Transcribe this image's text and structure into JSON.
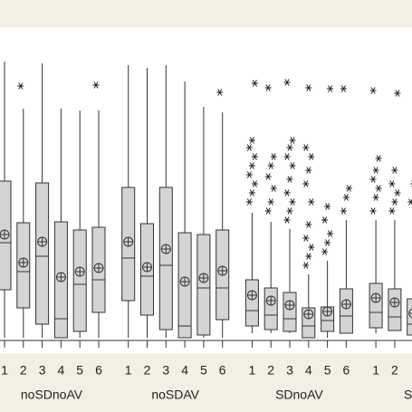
{
  "chart_data": {
    "type": "boxplot",
    "ylim": [
      0,
      343
    ],
    "box_color": "#d4d4d4",
    "line_color": "#333333",
    "groups": [
      {
        "name": "noSDnoAV",
        "categories": [
          "1",
          "2",
          "3",
          "4",
          "5",
          "6"
        ],
        "boxes": [
          {
            "whislo": 0,
            "q1": 53,
            "med": 105,
            "mean": 114,
            "q3": 173,
            "whishi": 305,
            "fliers": []
          },
          {
            "whislo": 0,
            "q1": 33,
            "med": 73,
            "mean": 83,
            "q3": 127,
            "whishi": 253,
            "fliers": [
              278
            ]
          },
          {
            "whislo": 0,
            "q1": 15,
            "med": 90,
            "mean": 106,
            "q3": 171,
            "whishi": 303,
            "fliers": []
          },
          {
            "whislo": 0,
            "q1": 0,
            "med": 21,
            "mean": 67,
            "q3": 128,
            "whishi": 253,
            "fliers": []
          },
          {
            "whislo": 0,
            "q1": 7,
            "med": 59,
            "mean": 73,
            "q3": 119,
            "whishi": 251,
            "fliers": []
          },
          {
            "whislo": 0,
            "q1": 28,
            "med": 64,
            "mean": 77,
            "q3": 122,
            "whishi": 251,
            "fliers": [
              279
            ]
          }
        ]
      },
      {
        "name": "noSDAV",
        "categories": [
          "1",
          "2",
          "3",
          "4",
          "5",
          "6"
        ],
        "boxes": [
          {
            "whislo": 0,
            "q1": 41,
            "med": 88,
            "mean": 106,
            "q3": 166,
            "whishi": 301,
            "fliers": []
          },
          {
            "whislo": 0,
            "q1": 25,
            "med": 68,
            "mean": 78,
            "q3": 126,
            "whishi": 298,
            "fliers": []
          },
          {
            "whislo": 0,
            "q1": 9,
            "med": 80,
            "mean": 98,
            "q3": 166,
            "whishi": 301,
            "fliers": []
          },
          {
            "whislo": 0,
            "q1": 0,
            "med": 13,
            "mean": 62,
            "q3": 116,
            "whishi": 283,
            "fliers": []
          },
          {
            "whislo": 0,
            "q1": 3,
            "med": 55,
            "mean": 66,
            "q3": 114,
            "whishi": 255,
            "fliers": []
          },
          {
            "whislo": 0,
            "q1": 20,
            "med": 55,
            "mean": 74,
            "q3": 119,
            "whishi": 249,
            "fliers": [
              271
            ]
          }
        ]
      },
      {
        "name": "SDnoAV",
        "categories": [
          "1",
          "2",
          "3",
          "4",
          "5",
          "6"
        ],
        "boxes": [
          {
            "whislo": 5,
            "q1": 13,
            "med": 30,
            "mean": 47,
            "q3": 64,
            "whishi": 138,
            "fliers": [
              150,
              160,
              170,
              180,
              190,
              200,
              210,
              218,
              281
            ]
          },
          {
            "whislo": 5,
            "q1": 9,
            "med": 25,
            "mean": 41,
            "q3": 55,
            "whishi": 128,
            "fliers": [
              140,
              150,
              165,
              178,
              190,
              200,
              276
            ]
          },
          {
            "whislo": 5,
            "q1": 7,
            "med": 21,
            "mean": 36,
            "q3": 50,
            "whishi": 120,
            "fliers": [
              130,
              140,
              150,
              160,
              175,
              190,
              200,
              210,
              218,
              282
            ]
          },
          {
            "whislo": 0,
            "q1": 0,
            "med": 13,
            "mean": 26,
            "q3": 33,
            "whishi": 70,
            "fliers": [
              80,
              90,
              100,
              110,
              125,
              150,
              170,
              185,
              200,
              210,
              276
            ]
          },
          {
            "whislo": 0,
            "q1": 7,
            "med": 19,
            "mean": 29,
            "q3": 34,
            "whishi": 85,
            "fliers": [
              95,
              105,
              115,
              130,
              145,
              275
            ]
          },
          {
            "whislo": 5,
            "q1": 5,
            "med": 24,
            "mean": 37,
            "q3": 54,
            "whishi": 130,
            "fliers": [
              140,
              155,
              165,
              275
            ]
          }
        ]
      },
      {
        "name": "S",
        "categories": [
          "1",
          "2",
          null
        ],
        "boxes": [
          {
            "whislo": 5,
            "q1": 11,
            "med": 28,
            "mean": 44,
            "q3": 60,
            "whishi": 130,
            "fliers": [
              140,
              155,
              165,
              175,
              185,
              198,
              273
            ]
          },
          {
            "whislo": 8,
            "q1": 8,
            "med": 23,
            "mean": 39,
            "q3": 54,
            "whishi": 130,
            "fliers": [
              140,
              150,
              160,
              170,
              185,
              270
            ]
          },
          {
            "whislo": 3,
            "q1": 3,
            "med": 15,
            "mean": 27,
            "q3": 43,
            "whishi": 100,
            "fliers": [
              150,
              170
            ]
          }
        ]
      }
    ]
  }
}
